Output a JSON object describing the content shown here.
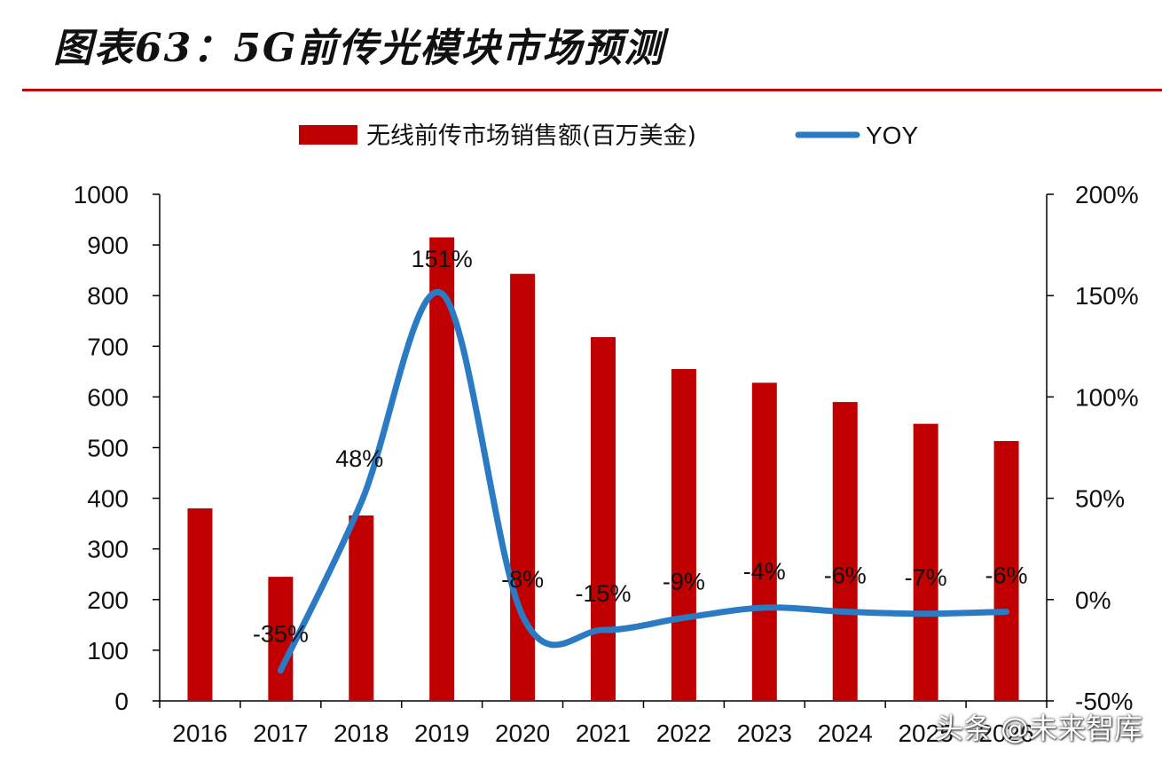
{
  "title": "图表63：5G前传光模块市场预测",
  "watermark": "头条 @未来智库",
  "colors": {
    "bar": "#c00000",
    "line": "#2b7bc4",
    "rule": "#c00000",
    "axis": "#000000",
    "text": "#111111"
  },
  "chart_data": {
    "type": "bar+line",
    "categories": [
      "2016",
      "2017",
      "2018",
      "2019",
      "2020",
      "2021",
      "2022",
      "2023",
      "2024",
      "2025",
      "2026"
    ],
    "series": [
      {
        "name": "无线前传市场销售额(百万美金)",
        "type": "bar",
        "axis": "left",
        "values": [
          380,
          245,
          366,
          915,
          843,
          718,
          655,
          628,
          590,
          547,
          513
        ]
      },
      {
        "name": "YOY",
        "type": "line",
        "axis": "right",
        "values": [
          null,
          -35,
          48,
          151,
          -8,
          -15,
          -9,
          -4,
          -6,
          -7,
          -6
        ],
        "labels": [
          "",
          "-35%",
          "48%",
          "151%",
          "-8%",
          "-15%",
          "-9%",
          "-4%",
          "-6%",
          "-7%",
          "-6%"
        ]
      }
    ],
    "y_left": {
      "min": 0,
      "max": 1000,
      "step": 100,
      "ticks": [
        "0",
        "100",
        "200",
        "300",
        "400",
        "500",
        "600",
        "700",
        "800",
        "900",
        "1000"
      ]
    },
    "y_right": {
      "min": -50,
      "max": 200,
      "step": 50,
      "ticks": [
        "-50%",
        "0%",
        "50%",
        "100%",
        "150%",
        "200%"
      ]
    },
    "legend": {
      "position": "top",
      "entries": [
        "无线前传市场销售额(百万美金)",
        "YOY"
      ]
    }
  }
}
